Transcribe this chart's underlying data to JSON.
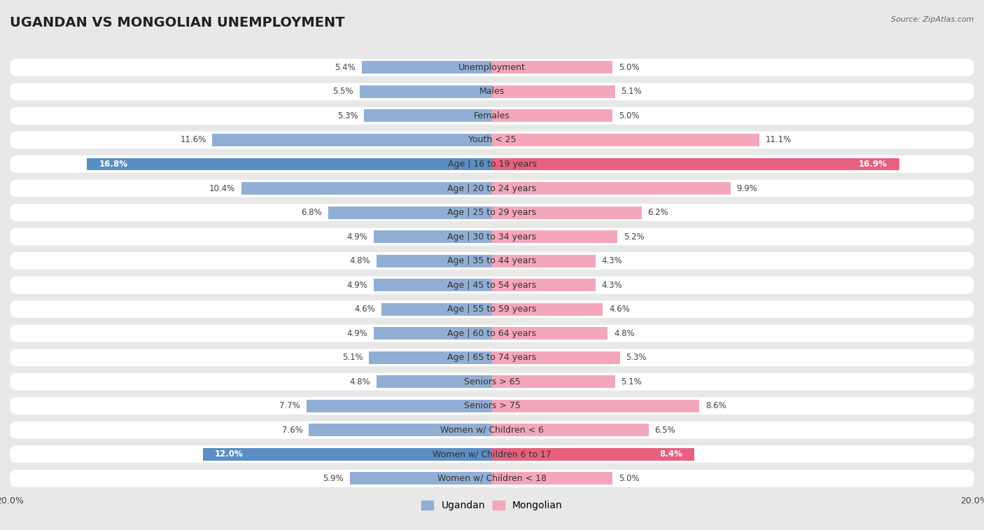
{
  "title": "UGANDAN VS MONGOLIAN UNEMPLOYMENT",
  "source": "Source: ZipAtlas.com",
  "categories": [
    "Unemployment",
    "Males",
    "Females",
    "Youth < 25",
    "Age | 16 to 19 years",
    "Age | 20 to 24 years",
    "Age | 25 to 29 years",
    "Age | 30 to 34 years",
    "Age | 35 to 44 years",
    "Age | 45 to 54 years",
    "Age | 55 to 59 years",
    "Age | 60 to 64 years",
    "Age | 65 to 74 years",
    "Seniors > 65",
    "Seniors > 75",
    "Women w/ Children < 6",
    "Women w/ Children 6 to 17",
    "Women w/ Children < 18"
  ],
  "ugandan": [
    5.4,
    5.5,
    5.3,
    11.6,
    16.8,
    10.4,
    6.8,
    4.9,
    4.8,
    4.9,
    4.6,
    4.9,
    5.1,
    4.8,
    7.7,
    7.6,
    12.0,
    5.9
  ],
  "mongolian": [
    5.0,
    5.1,
    5.0,
    11.1,
    16.9,
    9.9,
    6.2,
    5.2,
    4.3,
    4.3,
    4.6,
    4.8,
    5.3,
    5.1,
    8.6,
    6.5,
    8.4,
    5.0
  ],
  "ugandan_color_default": "#91aed4",
  "ugandan_color_highlight": "#5b8ec4",
  "mongolian_color_default": "#f4a7ba",
  "mongolian_color_highlight": "#e8607e",
  "ugandan_highlight_rows": [
    4,
    16
  ],
  "mongolian_highlight_rows": [
    4,
    16
  ],
  "axis_max": 20.0,
  "page_bg": "#e8e8e8",
  "row_bg": "#ffffff",
  "title_fontsize": 14,
  "label_fontsize": 9,
  "value_fontsize": 8.5,
  "legend_fontsize": 10
}
